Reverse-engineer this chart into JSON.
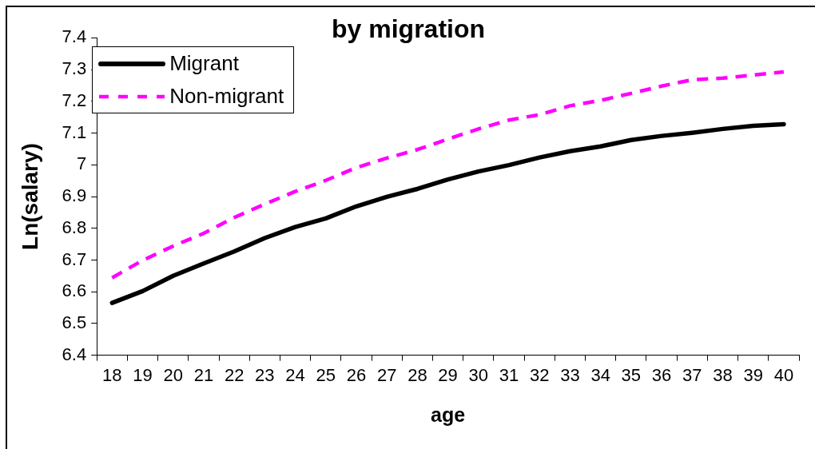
{
  "chart_data": {
    "type": "line",
    "title": "by migration",
    "xlabel": "age",
    "ylabel": "Ln(salary)",
    "categories": [
      "18",
      "19",
      "20",
      "21",
      "22",
      "23",
      "24",
      "25",
      "26",
      "27",
      "28",
      "29",
      "30",
      "31",
      "32",
      "33",
      "34",
      "35",
      "36",
      "37",
      "38",
      "39",
      "40"
    ],
    "series": [
      {
        "name": "Migrant",
        "color": "#000000",
        "line_style": "solid",
        "values": [
          6.565,
          6.602,
          6.65,
          6.689,
          6.727,
          6.769,
          6.804,
          6.831,
          6.869,
          6.899,
          6.924,
          6.954,
          6.979,
          6.999,
          7.023,
          7.043,
          7.058,
          7.078,
          7.091,
          7.101,
          7.113,
          7.123,
          7.128
        ]
      },
      {
        "name": "Non-migrant",
        "color": "#ff00ff",
        "line_style": "dashed",
        "values": [
          6.644,
          6.699,
          6.744,
          6.784,
          6.834,
          6.876,
          6.916,
          6.951,
          6.991,
          7.021,
          7.048,
          7.081,
          7.113,
          7.141,
          7.158,
          7.186,
          7.203,
          7.225,
          7.248,
          7.268,
          7.273,
          7.283,
          7.293
        ]
      }
    ],
    "ylim": [
      6.4,
      7.4
    ],
    "yticks": [
      6.4,
      6.5,
      6.6,
      6.7,
      6.8,
      6.9,
      7,
      7.1,
      7.2,
      7.3,
      7.4
    ],
    "legend": "top left",
    "marker": "none"
  }
}
